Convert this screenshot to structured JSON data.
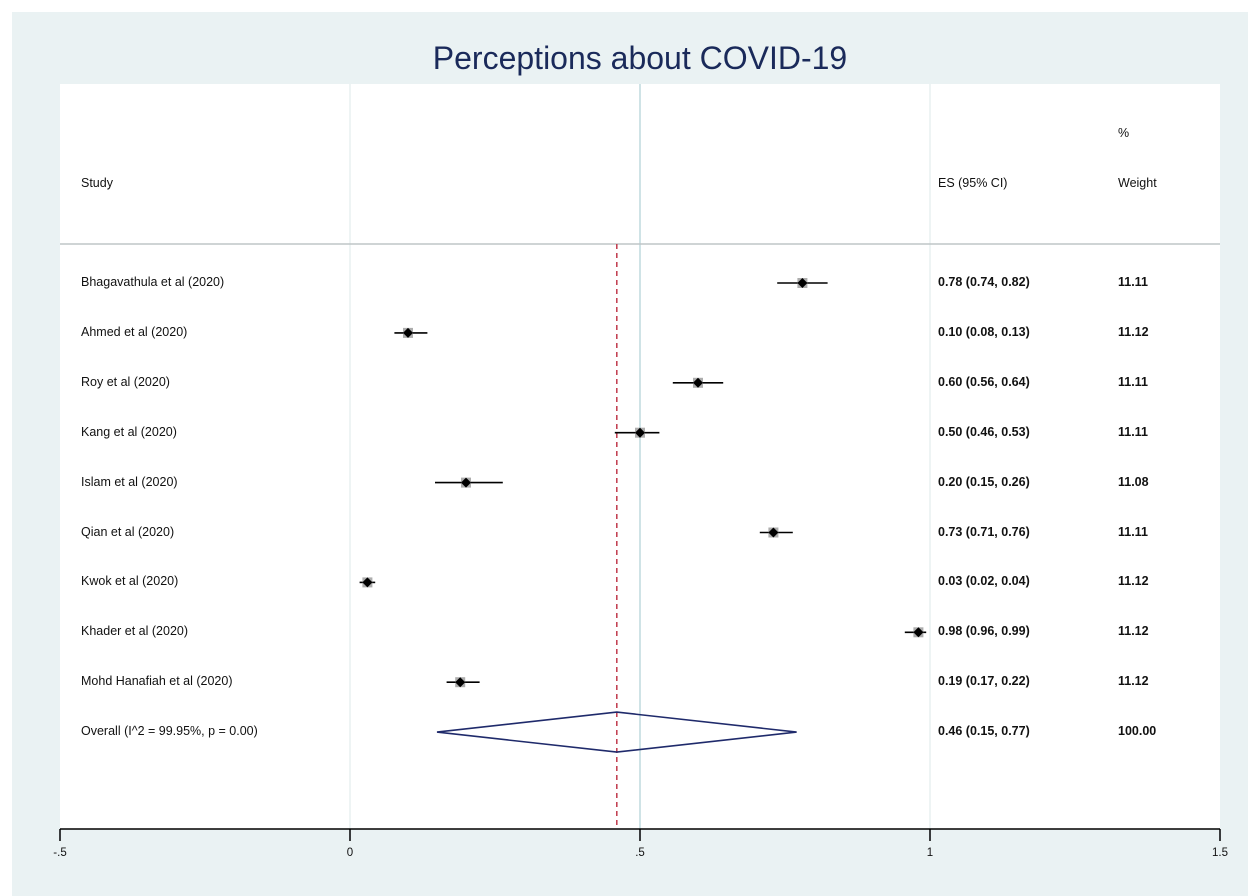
{
  "chart_data": {
    "type": "forest",
    "title": "Perceptions about COVID-19",
    "headers": {
      "study": "Study",
      "es": "ES (95% CI)",
      "weight_top": "%",
      "weight": "Weight"
    },
    "xlim": [
      -0.5,
      1.5
    ],
    "x_ticks": [
      -0.5,
      0,
      0.5,
      1,
      1.5
    ],
    "x_tick_labels": [
      "-.5",
      "0",
      ".5",
      "1",
      "1.5"
    ],
    "pooled_line": 0.46,
    "null_line": 0.5,
    "grid": false,
    "studies": [
      {
        "study": "Bhagavathula et al (2020)",
        "es": 0.78,
        "lo": 0.74,
        "hi": 0.82,
        "es_text": "0.78 (0.74, 0.82)",
        "weight": "11.11"
      },
      {
        "study": "Ahmed et al (2020)",
        "es": 0.1,
        "lo": 0.08,
        "hi": 0.13,
        "es_text": "0.10 (0.08, 0.13)",
        "weight": "11.12"
      },
      {
        "study": "Roy et al (2020)",
        "es": 0.6,
        "lo": 0.56,
        "hi": 0.64,
        "es_text": "0.60 (0.56, 0.64)",
        "weight": "11.11"
      },
      {
        "study": "Kang et al (2020)",
        "es": 0.5,
        "lo": 0.46,
        "hi": 0.53,
        "es_text": "0.50 (0.46, 0.53)",
        "weight": "11.11"
      },
      {
        "study": "Islam et al (2020)",
        "es": 0.2,
        "lo": 0.15,
        "hi": 0.26,
        "es_text": "0.20 (0.15, 0.26)",
        "weight": "11.08"
      },
      {
        "study": "Qian et al (2020)",
        "es": 0.73,
        "lo": 0.71,
        "hi": 0.76,
        "es_text": "0.73 (0.71, 0.76)",
        "weight": "11.11"
      },
      {
        "study": "Kwok et al (2020)",
        "es": 0.03,
        "lo": 0.02,
        "hi": 0.04,
        "es_text": "0.03 (0.02, 0.04)",
        "weight": "11.12"
      },
      {
        "study": "Khader et al (2020)",
        "es": 0.98,
        "lo": 0.96,
        "hi": 0.99,
        "es_text": "0.98 (0.96, 0.99)",
        "weight": "11.12"
      },
      {
        "study": "Mohd Hanafiah et al (2020)",
        "es": 0.19,
        "lo": 0.17,
        "hi": 0.22,
        "es_text": "0.19 (0.17, 0.22)",
        "weight": "11.12"
      }
    ],
    "overall": {
      "label": "Overall  (I^2 = 99.95%, p = 0.00)",
      "es": 0.46,
      "lo": 0.15,
      "hi": 0.77,
      "es_text": "0.46 (0.15, 0.77)",
      "weight": "100.00"
    },
    "colors": {
      "background": "#eaf2f3",
      "plot": "#ffffff",
      "title": "#1a2a5a",
      "pooled_line": "#c0394b",
      "diamond": "#1f2a6b",
      "reference": "#cfe3e6"
    }
  }
}
